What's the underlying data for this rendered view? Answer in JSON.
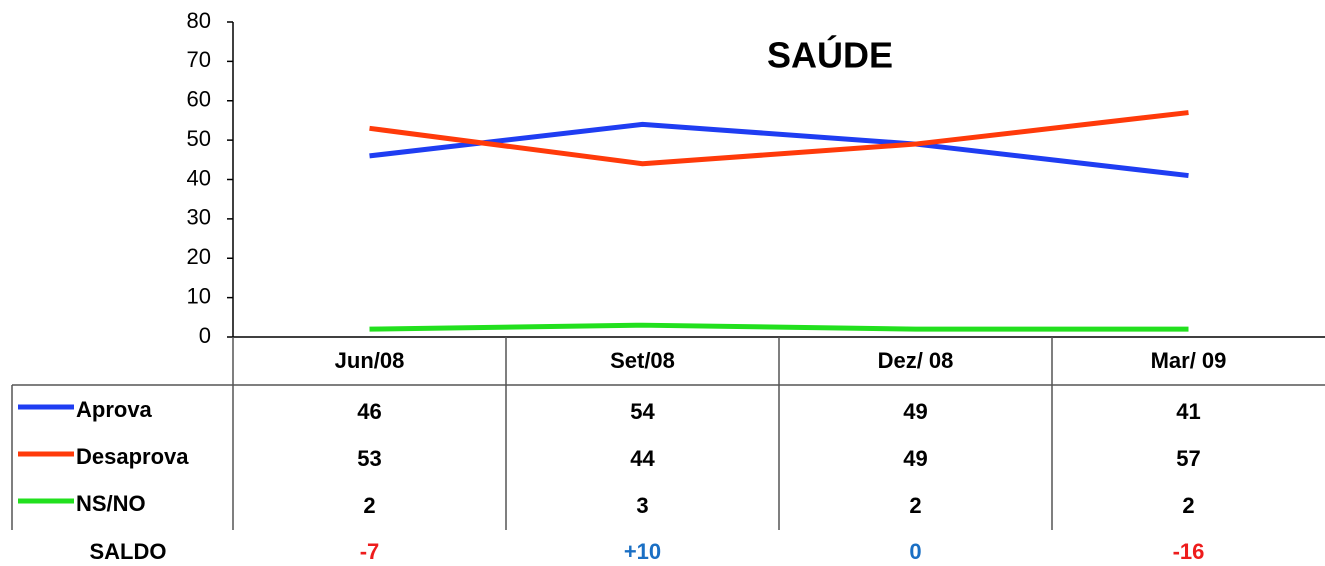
{
  "chart_data": {
    "type": "line",
    "title": "SAÚDE",
    "categories": [
      "Jun/08",
      "Set/08",
      "Dez/ 08",
      "Mar/ 09"
    ],
    "series": [
      {
        "name": "Aprova",
        "color": "#1f3df2",
        "values": [
          46,
          54,
          49,
          41
        ]
      },
      {
        "name": "Desaprova",
        "color": "#ff3a0a",
        "values": [
          53,
          44,
          49,
          57
        ]
      },
      {
        "name": "NS/NO",
        "color": "#22e01e",
        "values": [
          2,
          3,
          2,
          2
        ]
      }
    ],
    "saldo": {
      "name": "SALDO",
      "values": [
        -7,
        10,
        0,
        -16
      ],
      "value_labels": [
        "-7",
        "+10",
        "0",
        "-16"
      ]
    },
    "ylim": [
      0,
      80
    ],
    "yticks": [
      0,
      10,
      20,
      30,
      40,
      50,
      60,
      70,
      80
    ]
  }
}
